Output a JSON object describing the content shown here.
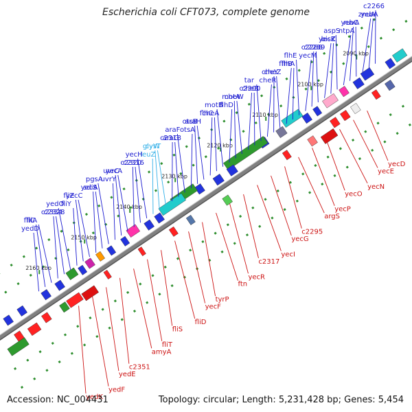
{
  "title": "Escherichia coli CFT073, complete genome",
  "footer": {
    "accession": "Accession: NC_004431",
    "summary": "Topology: circular; Length: 5,231,428 bp; Genes: 5,454"
  },
  "colors": {
    "forward_label": "#1a1ad0",
    "reverse_label": "#cc1111",
    "highlight_label": "#33b0e8",
    "backbone": "#808080"
  },
  "ticks": [
    "2090 kbp",
    "2100 kbp",
    "2110 kbp",
    "2120 kbp",
    "2130 kbp",
    "2140 kbp",
    "2150 kbp",
    "2160 kbp"
  ],
  "forward_genes": [
    "c2266",
    "yebA",
    "znuA",
    "ruvA",
    "yebC",
    "ntpA",
    "aspS",
    "bisZ",
    "yecK",
    "c2289",
    "c2288",
    "yecM",
    "flhE",
    "flhA",
    "flhB",
    "cheZ",
    "cheY",
    "cheR",
    "tar",
    "cheB",
    "c2300",
    "cheW",
    "motA",
    "flhD",
    "motB",
    "cheA",
    "flhC",
    "araH",
    "otsB",
    "otsA",
    "araF",
    "araG",
    "c2318",
    "cysT",
    "glyW",
    "leuZ",
    "yecH",
    "c2316",
    "c2320",
    "yecA",
    "uvrC",
    "uvrY",
    "pgsA",
    "sdiA",
    "yecS",
    "yecC",
    "fliZ",
    "fliY",
    "yedO",
    "c2328",
    "c2334",
    "fliA",
    "fliC",
    "yedD"
  ],
  "reverse_genes": [
    "yecD",
    "yecE",
    "yecN",
    "yecO",
    "yecP",
    "argS",
    "c2295",
    "yecG",
    "yecI",
    "c2317",
    "yecR",
    "ftn",
    "tyrP",
    "yecF",
    "fliD",
    "fliS",
    "fliT",
    "amyA",
    "c2351",
    "yedE",
    "yedF",
    "yedK"
  ]
}
